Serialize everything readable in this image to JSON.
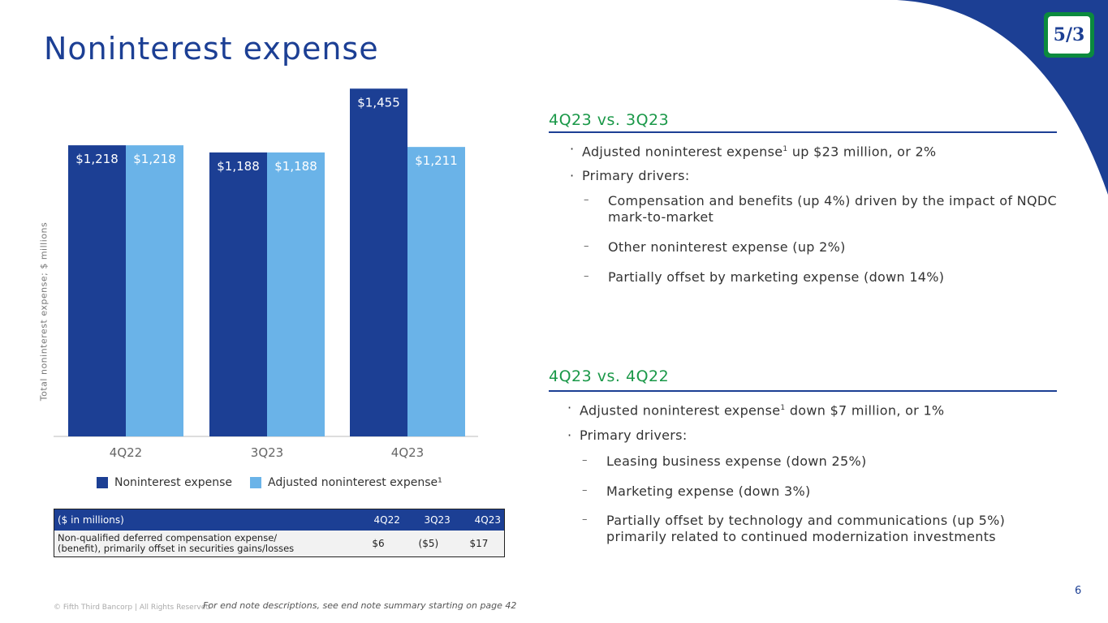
{
  "title": "Noninterest expense",
  "colors": {
    "dark_blue": "#1c3f94",
    "light_blue": "#6ab3e8",
    "green": "#1a9848",
    "corner": "#1c3f94"
  },
  "logo": {
    "name": "fifth-third-logo",
    "text": "5/3"
  },
  "chart_data": {
    "type": "bar",
    "categories": [
      "4Q22",
      "3Q23",
      "4Q23"
    ],
    "series": [
      {
        "name": "Noninterest expense",
        "values": [
          1218,
          1188,
          1455
        ],
        "labels": [
          "$1,218",
          "$1,188",
          "$1,455"
        ],
        "color": "#1c3f94"
      },
      {
        "name": "Adjusted noninterest expense¹",
        "values": [
          1218,
          1188,
          1211
        ],
        "labels": [
          "$1,218",
          "$1,188",
          "$1,211"
        ],
        "color": "#6ab3e8"
      }
    ],
    "ylabel": "Total noninterest expense; $ millions",
    "xlabel": "",
    "ylim": [
      0,
      1500
    ],
    "legend": "bottom"
  },
  "table": {
    "headers": [
      "($ in millions)",
      "4Q22",
      "3Q23",
      "4Q23"
    ],
    "rows": [
      {
        "label_line1": "Non-qualified deferred compensation expense/",
        "label_line2": "(benefit), primarily offset in securities gains/losses",
        "values": [
          "$6",
          "($5)",
          "$17"
        ]
      }
    ]
  },
  "sections": [
    {
      "heading": "4Q23 vs. 3Q23",
      "bullets": [
        {
          "text_a": "Adjusted noninterest expense",
          "sup": "1",
          "text_b": " up $23 million, or 2%"
        },
        {
          "text_a": "Primary drivers:",
          "sup": "",
          "text_b": ""
        }
      ],
      "subs": [
        "Compensation and benefits (up 4%) driven by the impact of NQDC mark-to-market",
        "Other noninterest expense (up 2%)",
        "Partially offset by marketing expense (down 14%)"
      ]
    },
    {
      "heading": "4Q23 vs. 4Q22",
      "bullets": [
        {
          "text_a": "Adjusted noninterest expense",
          "sup": "1",
          "text_b": " down $7 million, or 1%"
        },
        {
          "text_a": "Primary drivers:",
          "sup": "",
          "text_b": ""
        }
      ],
      "subs": [
        "Leasing business expense (down 25%)",
        "Marketing expense (down 3%)",
        "Partially offset by technology and communications (up 5%) primarily related to continued modernization investments"
      ]
    }
  ],
  "bullet_mark": "·",
  "sub_mark": "–",
  "footer": {
    "copyright": "© Fifth Third Bancorp | All Rights Reserved",
    "endnote": "For end note descriptions, see end note summary starting on page 42",
    "page": "6"
  }
}
